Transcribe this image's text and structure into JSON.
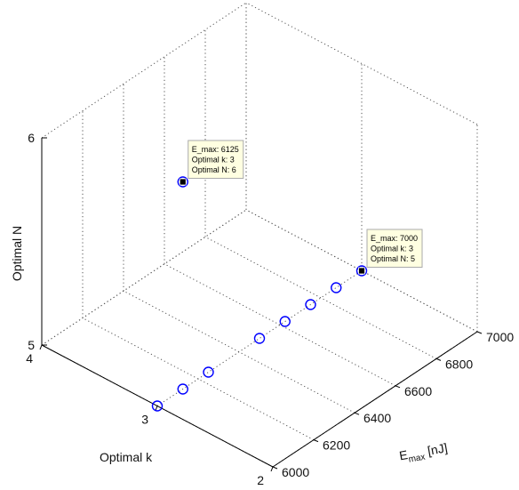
{
  "chart_data": {
    "type": "scatter",
    "title": "",
    "axes": {
      "x": {
        "label": "E",
        "label_sub": "max",
        "label_suffix": " [nJ]",
        "range": [
          6000,
          7000
        ],
        "ticks": [
          "6000",
          "6200",
          "6400",
          "6600",
          "6800",
          "7000"
        ],
        "tick_values": [
          6000,
          6200,
          6400,
          6600,
          6800,
          7000
        ]
      },
      "y": {
        "label": "Optimal k",
        "range": [
          2,
          4
        ],
        "ticks": [
          "2",
          "3",
          "4"
        ],
        "tick_values": [
          2,
          3,
          4
        ]
      },
      "z": {
        "label": "Optimal N",
        "range": [
          5,
          6
        ],
        "ticks": [
          "5",
          "6"
        ],
        "tick_values": [
          5,
          6
        ]
      }
    },
    "grid": true,
    "marker": {
      "shape": "circle",
      "color": "#0000ff",
      "fill": "none"
    },
    "series": [
      {
        "points": [
          {
            "x": 6000,
            "y": 3,
            "z": 5
          },
          {
            "x": 6125,
            "y": 3,
            "z": 5
          },
          {
            "x": 6250,
            "y": 3,
            "z": 5
          },
          {
            "x": 6500,
            "y": 3,
            "z": 5
          },
          {
            "x": 6625,
            "y": 3,
            "z": 5
          },
          {
            "x": 6750,
            "y": 3,
            "z": 5
          },
          {
            "x": 6875,
            "y": 3,
            "z": 5
          },
          {
            "x": 7000,
            "y": 3,
            "z": 5
          },
          {
            "x": 6125,
            "y": 3,
            "z": 6
          }
        ]
      }
    ],
    "datatips": [
      {
        "point_index": 8,
        "lines": [
          "E_max: 6125",
          "Optimal k: 3",
          "Optimal N: 6"
        ]
      },
      {
        "point_index": 7,
        "lines": [
          "E_max: 7000",
          "Optimal k: 3",
          "Optimal N: 5"
        ]
      }
    ]
  }
}
